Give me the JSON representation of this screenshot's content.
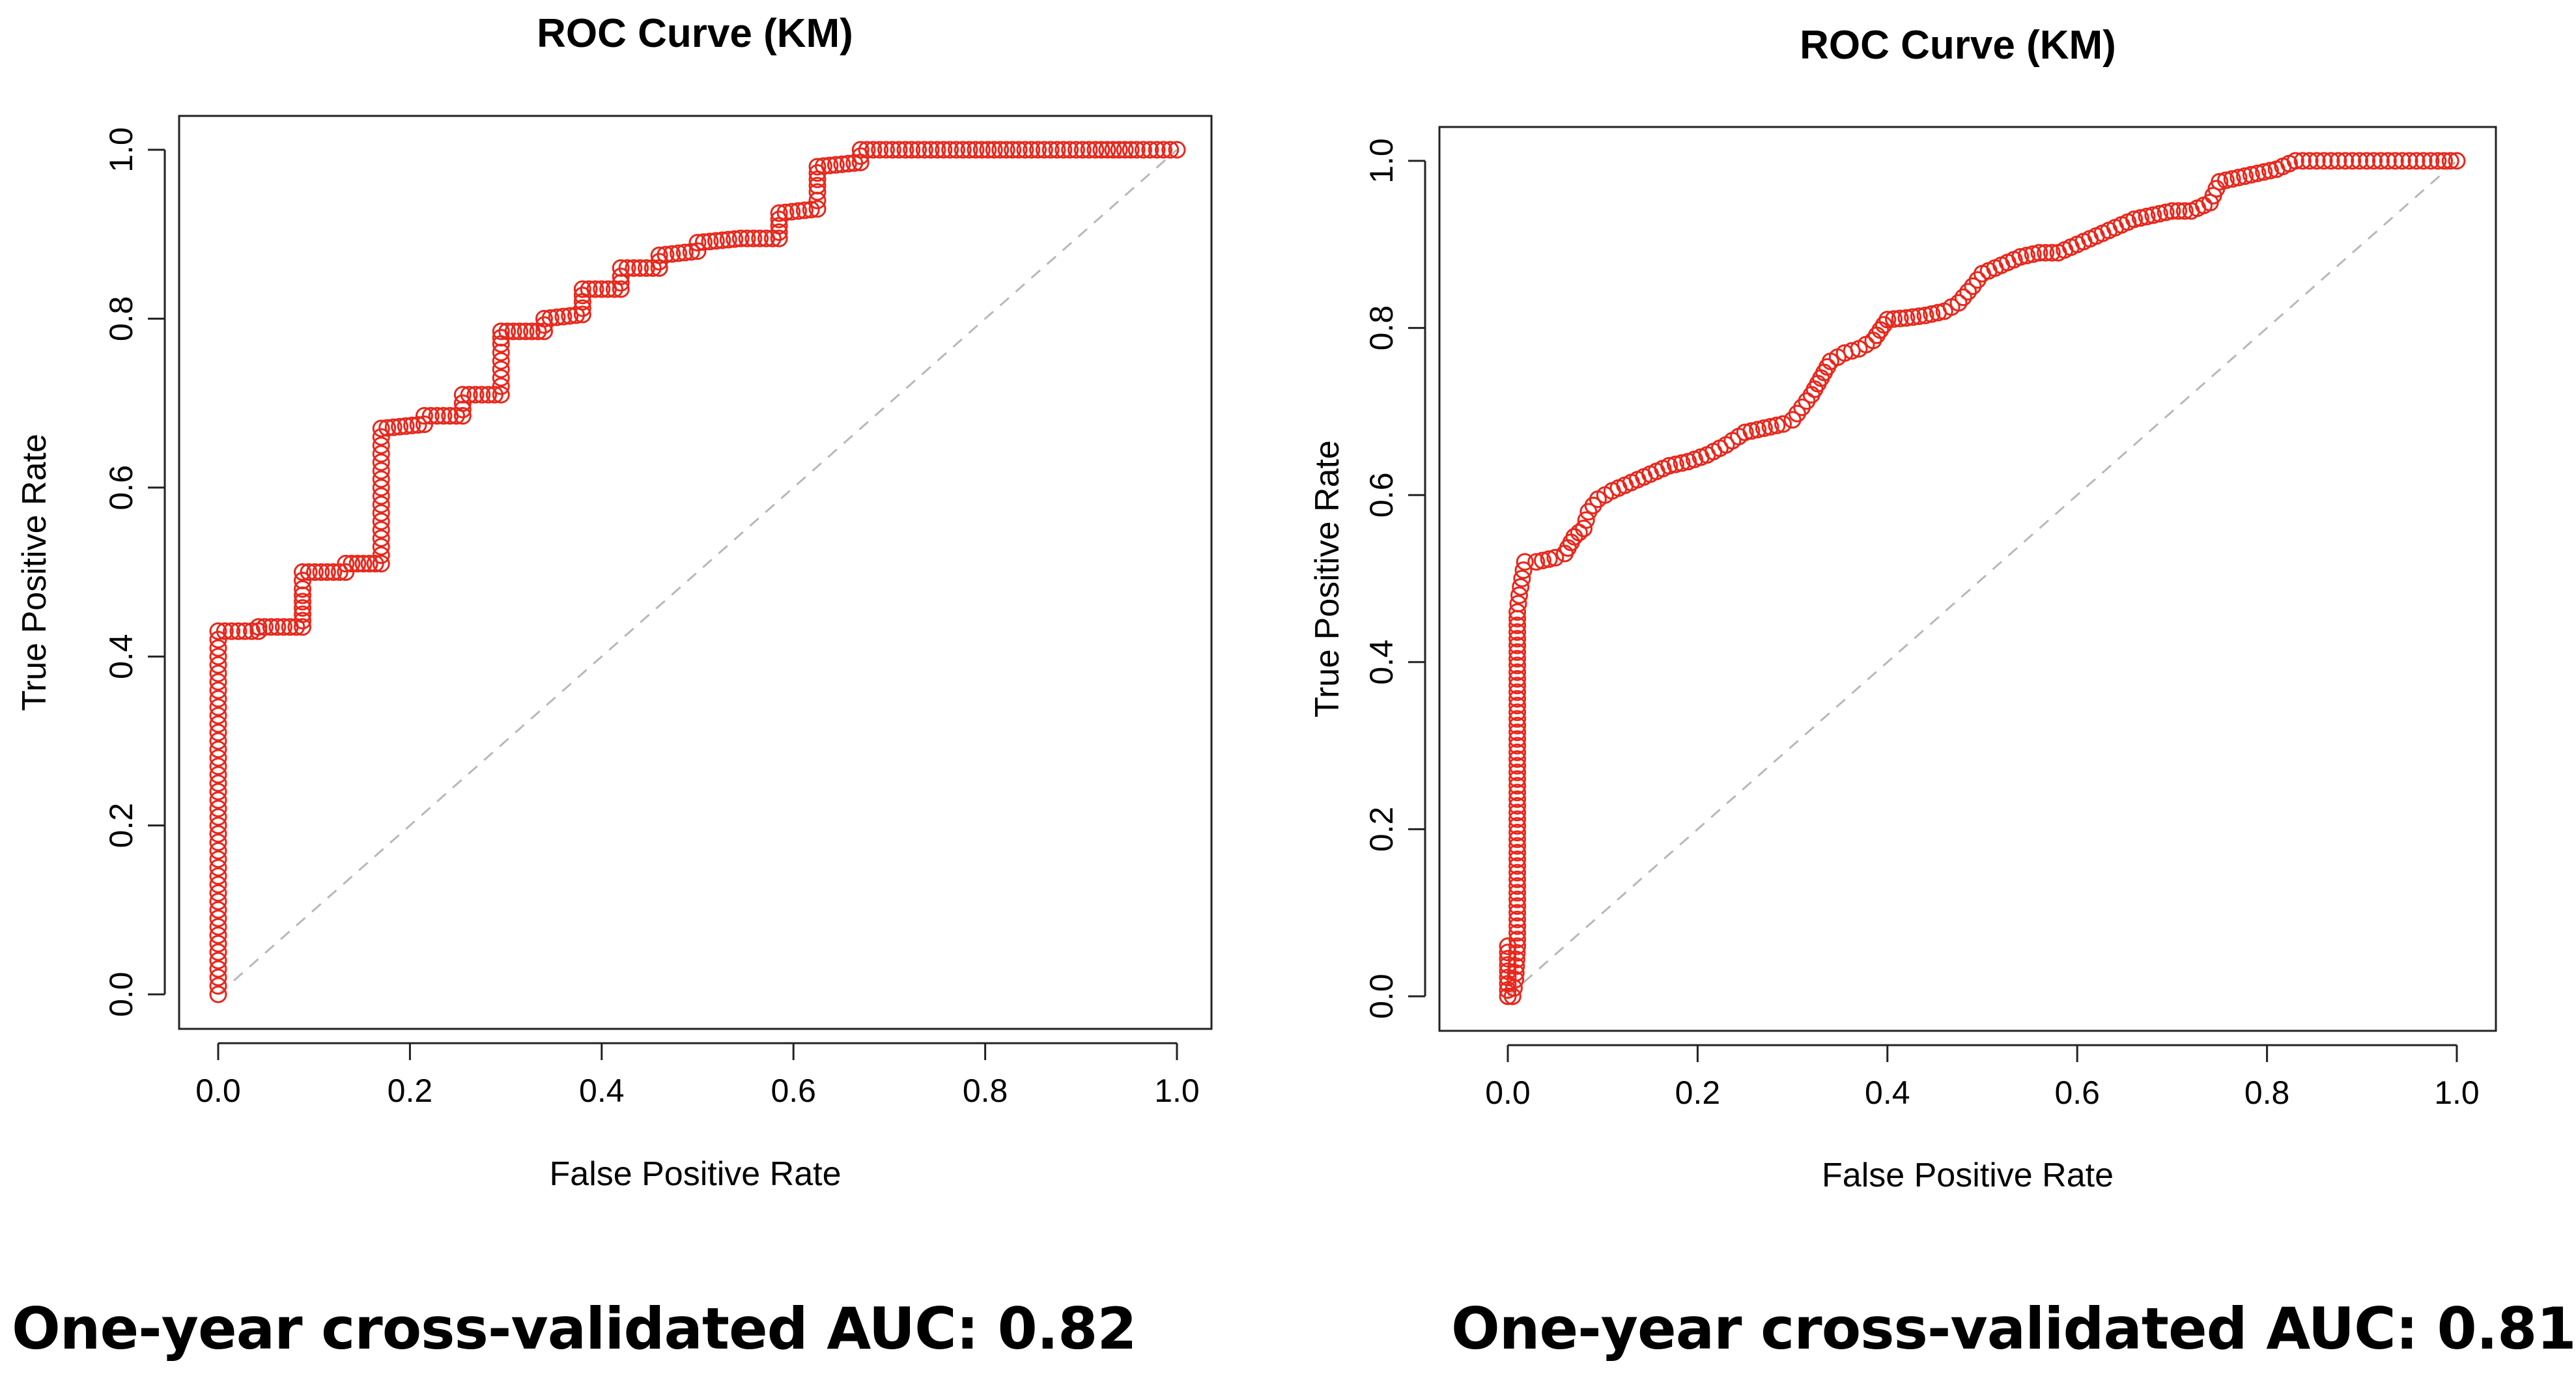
{
  "chart_data": [
    {
      "type": "scatter",
      "title": "ROC Curve (KM)",
      "xlabel": "False Positive Rate",
      "ylabel": "True Positive Rate",
      "xlim": [
        0,
        1
      ],
      "ylim": [
        0,
        1
      ],
      "xticks": [
        "0.0",
        "0.2",
        "0.4",
        "0.6",
        "0.8",
        "1.0"
      ],
      "yticks": [
        "0.0",
        "0.2",
        "0.4",
        "0.6",
        "0.8",
        "1.0"
      ],
      "grid": false,
      "reference_line": "diagonal dashed gray (0,0)-(1,1)",
      "marker": "open circle",
      "color": "#e8271c",
      "caption": "One-year cross-validated AUC: 0.82",
      "auc": 0.82,
      "series": [
        {
          "name": "ROC",
          "points": [
            [
              0.0,
              0.0
            ],
            [
              0.0,
              0.02
            ],
            [
              0.0,
              0.04
            ],
            [
              0.0,
              0.06
            ],
            [
              0.0,
              0.08
            ],
            [
              0.0,
              0.1
            ],
            [
              0.0,
              0.12
            ],
            [
              0.0,
              0.14
            ],
            [
              0.0,
              0.16
            ],
            [
              0.0,
              0.18
            ],
            [
              0.0,
              0.2
            ],
            [
              0.0,
              0.22
            ],
            [
              0.0,
              0.24
            ],
            [
              0.0,
              0.26
            ],
            [
              0.0,
              0.28
            ],
            [
              0.0,
              0.3
            ],
            [
              0.0,
              0.32
            ],
            [
              0.0,
              0.34
            ],
            [
              0.0,
              0.36
            ],
            [
              0.0,
              0.38
            ],
            [
              0.0,
              0.4
            ],
            [
              0.0,
              0.42
            ],
            [
              0.0,
              0.43
            ],
            [
              0.042,
              0.43
            ],
            [
              0.042,
              0.435
            ],
            [
              0.088,
              0.435
            ],
            [
              0.088,
              0.45
            ],
            [
              0.088,
              0.465
            ],
            [
              0.088,
              0.48
            ],
            [
              0.088,
              0.5
            ],
            [
              0.133,
              0.5
            ],
            [
              0.133,
              0.51
            ],
            [
              0.17,
              0.51
            ],
            [
              0.17,
              0.53
            ],
            [
              0.17,
              0.55
            ],
            [
              0.17,
              0.57
            ],
            [
              0.17,
              0.59
            ],
            [
              0.17,
              0.61
            ],
            [
              0.17,
              0.63
            ],
            [
              0.17,
              0.65
            ],
            [
              0.17,
              0.67
            ],
            [
              0.215,
              0.675
            ],
            [
              0.215,
              0.685
            ],
            [
              0.255,
              0.685
            ],
            [
              0.255,
              0.7
            ],
            [
              0.255,
              0.71
            ],
            [
              0.295,
              0.71
            ],
            [
              0.295,
              0.73
            ],
            [
              0.295,
              0.75
            ],
            [
              0.295,
              0.77
            ],
            [
              0.295,
              0.785
            ],
            [
              0.34,
              0.785
            ],
            [
              0.34,
              0.8
            ],
            [
              0.38,
              0.805
            ],
            [
              0.38,
              0.82
            ],
            [
              0.38,
              0.835
            ],
            [
              0.42,
              0.835
            ],
            [
              0.42,
              0.85
            ],
            [
              0.42,
              0.86
            ],
            [
              0.46,
              0.86
            ],
            [
              0.46,
              0.875
            ],
            [
              0.5,
              0.88
            ],
            [
              0.5,
              0.89
            ],
            [
              0.545,
              0.895
            ],
            [
              0.585,
              0.895
            ],
            [
              0.585,
              0.91
            ],
            [
              0.585,
              0.925
            ],
            [
              0.625,
              0.93
            ],
            [
              0.625,
              0.95
            ],
            [
              0.625,
              0.965
            ],
            [
              0.625,
              0.98
            ],
            [
              0.67,
              0.985
            ],
            [
              0.67,
              1.0
            ],
            [
              0.71,
              1.0
            ],
            [
              0.75,
              1.0
            ],
            [
              0.79,
              1.0
            ],
            [
              0.835,
              1.0
            ],
            [
              0.875,
              1.0
            ],
            [
              0.915,
              1.0
            ],
            [
              0.958,
              1.0
            ],
            [
              1.0,
              1.0
            ]
          ]
        }
      ]
    },
    {
      "type": "scatter",
      "title": "ROC Curve (KM)",
      "xlabel": "False Positive Rate",
      "ylabel": "True Positive Rate",
      "xlim": [
        0,
        1
      ],
      "ylim": [
        0,
        1
      ],
      "xticks": [
        "0.0",
        "0.2",
        "0.4",
        "0.6",
        "0.8",
        "1.0"
      ],
      "yticks": [
        "0.0",
        "0.2",
        "0.4",
        "0.6",
        "0.8",
        "1.0"
      ],
      "grid": false,
      "reference_line": "diagonal dashed gray (0,0)-(1,1)",
      "marker": "open circle",
      "color": "#e8271c",
      "caption": "One-year cross-validated AUC: 0.81",
      "auc": 0.81,
      "series": [
        {
          "name": "ROC",
          "points": [
            [
              0.0,
              0.0
            ],
            [
              0.0,
              0.03
            ],
            [
              0.0,
              0.06
            ],
            [
              0.005,
              0.0
            ],
            [
              0.008,
              0.02
            ],
            [
              0.01,
              0.06
            ],
            [
              0.01,
              0.1
            ],
            [
              0.01,
              0.14
            ],
            [
              0.01,
              0.18
            ],
            [
              0.01,
              0.22
            ],
            [
              0.01,
              0.26
            ],
            [
              0.01,
              0.3
            ],
            [
              0.01,
              0.34
            ],
            [
              0.01,
              0.38
            ],
            [
              0.01,
              0.42
            ],
            [
              0.01,
              0.46
            ],
            [
              0.012,
              0.48
            ],
            [
              0.015,
              0.5
            ],
            [
              0.018,
              0.52
            ],
            [
              0.03,
              0.52
            ],
            [
              0.05,
              0.525
            ],
            [
              0.06,
              0.53
            ],
            [
              0.07,
              0.55
            ],
            [
              0.08,
              0.56
            ],
            [
              0.085,
              0.58
            ],
            [
              0.095,
              0.595
            ],
            [
              0.11,
              0.605
            ],
            [
              0.13,
              0.615
            ],
            [
              0.15,
              0.625
            ],
            [
              0.17,
              0.635
            ],
            [
              0.19,
              0.64
            ],
            [
              0.21,
              0.648
            ],
            [
              0.23,
              0.66
            ],
            [
              0.25,
              0.675
            ],
            [
              0.27,
              0.68
            ],
            [
              0.29,
              0.685
            ],
            [
              0.3,
              0.69
            ],
            [
              0.31,
              0.705
            ],
            [
              0.32,
              0.72
            ],
            [
              0.33,
              0.74
            ],
            [
              0.34,
              0.76
            ],
            [
              0.355,
              0.77
            ],
            [
              0.37,
              0.775
            ],
            [
              0.385,
              0.785
            ],
            [
              0.4,
              0.81
            ],
            [
              0.42,
              0.812
            ],
            [
              0.44,
              0.815
            ],
            [
              0.46,
              0.82
            ],
            [
              0.475,
              0.83
            ],
            [
              0.49,
              0.85
            ],
            [
              0.5,
              0.865
            ],
            [
              0.52,
              0.875
            ],
            [
              0.54,
              0.885
            ],
            [
              0.56,
              0.89
            ],
            [
              0.58,
              0.89
            ],
            [
              0.6,
              0.9
            ],
            [
              0.62,
              0.91
            ],
            [
              0.64,
              0.92
            ],
            [
              0.66,
              0.93
            ],
            [
              0.68,
              0.935
            ],
            [
              0.7,
              0.94
            ],
            [
              0.72,
              0.94
            ],
            [
              0.74,
              0.95
            ],
            [
              0.75,
              0.975
            ],
            [
              0.77,
              0.98
            ],
            [
              0.79,
              0.985
            ],
            [
              0.81,
              0.99
            ],
            [
              0.83,
              1.0
            ],
            [
              0.86,
              1.0
            ],
            [
              0.89,
              1.0
            ],
            [
              0.92,
              1.0
            ],
            [
              0.95,
              1.0
            ],
            [
              0.98,
              1.0
            ],
            [
              1.0,
              1.0
            ]
          ]
        }
      ]
    }
  ]
}
